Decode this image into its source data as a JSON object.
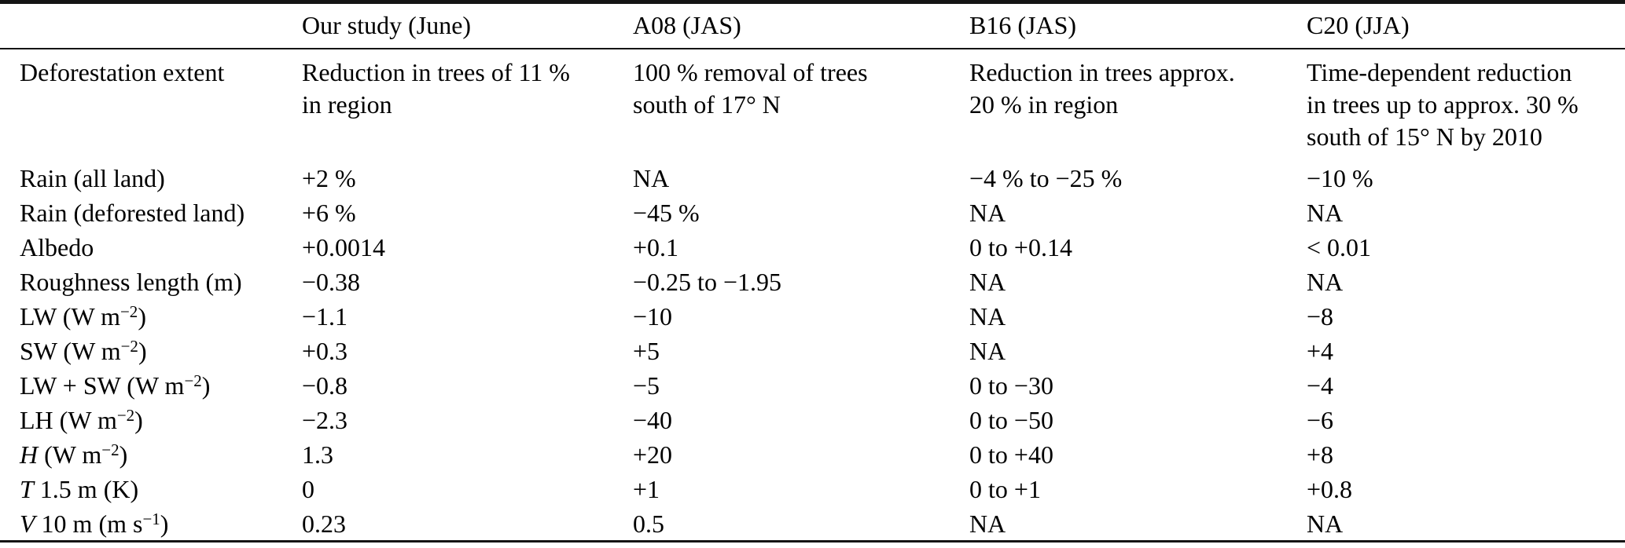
{
  "table": {
    "columns": [
      "",
      "Our study (June)",
      "A08 (JAS)",
      "B16 (JAS)",
      "C20 (JJA)"
    ],
    "rows": [
      {
        "label": [
          {
            "t": "Deforestation extent"
          }
        ],
        "cells": [
          "Reduction in trees of 11 %\nin region",
          "100 % removal of trees\nsouth of 17° N",
          "Reduction in trees approx.\n20 % in region",
          "Time-dependent reduction\nin trees up to approx. 30 %\nsouth of 15° N by 2010"
        ]
      },
      {
        "label": [
          {
            "t": "Rain (all land)"
          }
        ],
        "cells": [
          "+2 %",
          "NA",
          "−4 % to −25 %",
          "−10 %"
        ]
      },
      {
        "label": [
          {
            "t": "Rain (deforested land)"
          }
        ],
        "cells": [
          "+6 %",
          "−45 %",
          "NA",
          "NA"
        ]
      },
      {
        "label": [
          {
            "t": "Albedo"
          }
        ],
        "cells": [
          "+0.0014",
          "+0.1",
          "0 to +0.14",
          "< 0.01"
        ]
      },
      {
        "label": [
          {
            "t": "Roughness length (m)"
          }
        ],
        "cells": [
          "−0.38",
          "−0.25 to −1.95",
          "NA",
          "NA"
        ]
      },
      {
        "label": [
          {
            "t": "LW (W m"
          },
          {
            "t": "−2",
            "sup": true
          },
          {
            "t": ")"
          }
        ],
        "cells": [
          "−1.1",
          "−10",
          "NA",
          "−8"
        ]
      },
      {
        "label": [
          {
            "t": "SW (W m"
          },
          {
            "t": "−2",
            "sup": true
          },
          {
            "t": ")"
          }
        ],
        "cells": [
          "+0.3",
          "+5",
          "NA",
          "+4"
        ]
      },
      {
        "label": [
          {
            "t": "LW + SW (W m"
          },
          {
            "t": "−2",
            "sup": true
          },
          {
            "t": ")"
          }
        ],
        "cells": [
          "−0.8",
          "−5",
          "0 to −30",
          "−4"
        ]
      },
      {
        "label": [
          {
            "t": "LH (W m"
          },
          {
            "t": "−2",
            "sup": true
          },
          {
            "t": ")"
          }
        ],
        "cells": [
          "−2.3",
          "−40",
          "0 to −50",
          "−6"
        ]
      },
      {
        "label": [
          {
            "t": "H",
            "italic": true
          },
          {
            "t": " (W m"
          },
          {
            "t": "−2",
            "sup": true
          },
          {
            "t": ")"
          }
        ],
        "cells": [
          "1.3",
          "+20",
          "0 to +40",
          "+8"
        ]
      },
      {
        "label": [
          {
            "t": "T",
            "italic": true
          },
          {
            "t": " 1.5 m (K)"
          }
        ],
        "cells": [
          "0",
          "+1",
          "0 to +1",
          "+0.8"
        ]
      },
      {
        "label": [
          {
            "t": "V",
            "italic": true
          },
          {
            "t": " 10 m (m s"
          },
          {
            "t": "−1",
            "sup": true
          },
          {
            "t": ")"
          }
        ],
        "cells": [
          "0.23",
          "0.5",
          "NA",
          "NA"
        ]
      }
    ]
  }
}
